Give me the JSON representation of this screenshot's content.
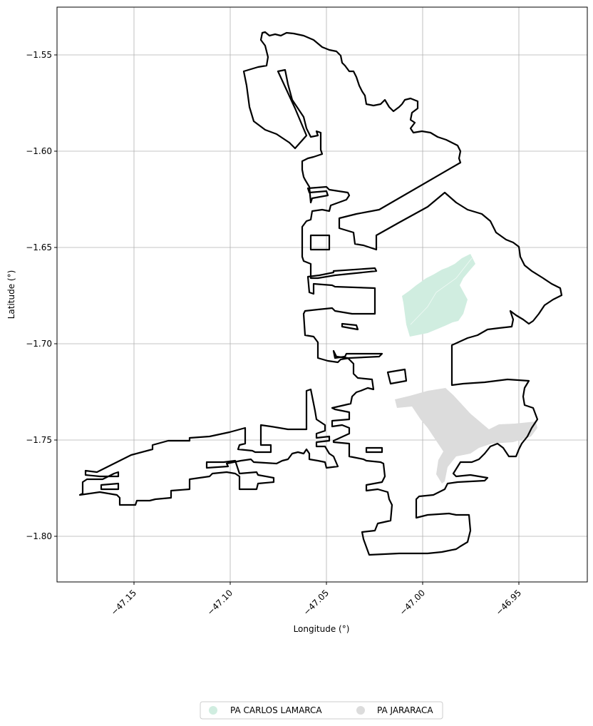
{
  "chart_data": {
    "type": "map",
    "xlabel": "Longitude (°)",
    "ylabel": "Latitude (°)",
    "xlim": [
      -47.19,
      -46.915
    ],
    "ylim": [
      -1.825,
      -1.525
    ],
    "x_ticks": [
      -47.15,
      -47.1,
      -47.05,
      -47.0,
      -46.95
    ],
    "x_tick_labels": [
      "−47.15",
      "−47.10",
      "−47.05",
      "−47.00",
      "−46.95"
    ],
    "y_ticks": [
      -1.55,
      -1.6,
      -1.65,
      -1.7,
      -1.75,
      -1.8
    ],
    "y_tick_labels": [
      "−1.55",
      "−1.60",
      "−1.65",
      "−1.70",
      "−1.75",
      "−1.80"
    ],
    "grid": true,
    "legend_position": "bottom-center",
    "legend": [
      {
        "name": "PA CARLOS LAMARCA",
        "color": "#d0ede0"
      },
      {
        "name": "PA JARARACA",
        "color": "#dcdcdc"
      }
    ],
    "outline_color": "#000000"
  }
}
